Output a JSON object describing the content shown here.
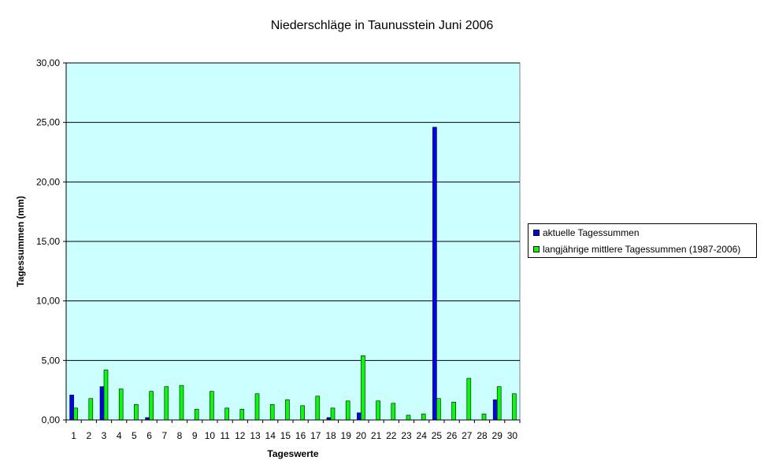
{
  "chart_data": {
    "type": "bar",
    "title": "Niederschläge in Taunusstein  Juni  2006",
    "xlabel": "Tageswerte",
    "ylabel": "Tagessummen (mm)",
    "ylim": [
      0,
      30
    ],
    "yticks": [
      "0,00",
      "5,00",
      "10,00",
      "15,00",
      "20,00",
      "25,00",
      "30,00"
    ],
    "grid": true,
    "legend_position": "right",
    "plot_background": "#ccffff",
    "categories": [
      "1",
      "2",
      "3",
      "4",
      "5",
      "6",
      "7",
      "8",
      "9",
      "10",
      "11",
      "12",
      "13",
      "14",
      "15",
      "16",
      "17",
      "18",
      "19",
      "20",
      "21",
      "22",
      "23",
      "24",
      "25",
      "26",
      "27",
      "28",
      "29",
      "30"
    ],
    "series": [
      {
        "name": "aktuelle Tagessummen",
        "color": "#0000ff",
        "values": [
          2.1,
          0,
          2.8,
          0,
          0,
          0.2,
          0,
          0,
          0,
          0,
          0,
          0,
          0,
          0,
          0,
          0,
          0,
          0.2,
          0,
          0.6,
          0,
          0,
          0,
          0,
          24.6,
          0,
          0,
          0,
          1.7,
          0
        ]
      },
      {
        "name": "langjährige mittlere Tagessummen (1987-2006)",
        "color": "#00ff00",
        "values": [
          1.0,
          1.8,
          4.2,
          2.6,
          1.3,
          2.4,
          2.8,
          2.9,
          0.9,
          2.4,
          1.0,
          0.9,
          2.2,
          1.3,
          1.7,
          1.2,
          2.0,
          1.0,
          1.6,
          5.4,
          1.6,
          1.4,
          0.4,
          0.5,
          1.8,
          1.5,
          3.5,
          0.5,
          2.8,
          2.2
        ]
      }
    ]
  }
}
